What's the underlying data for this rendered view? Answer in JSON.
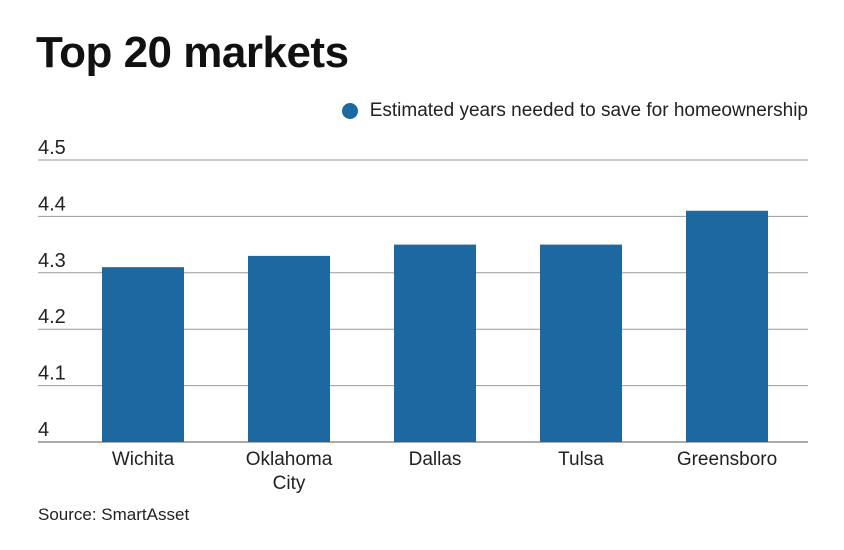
{
  "chart_data": {
    "type": "bar",
    "title": "Top 20 markets",
    "legend": {
      "label": "Estimated years needed to save for homeownership",
      "position": "top-right"
    },
    "categories": [
      [
        "Wichita"
      ],
      [
        "Oklahoma",
        "City"
      ],
      [
        "Dallas"
      ],
      [
        "Tulsa"
      ],
      [
        "Greensboro"
      ]
    ],
    "series": [
      {
        "name": "Estimated years needed to save for homeownership",
        "values": [
          4.31,
          4.33,
          4.35,
          4.35,
          4.41
        ]
      }
    ],
    "yticks": [
      "4",
      "4.1",
      "4.2",
      "4.3",
      "4.4",
      "4.5"
    ],
    "ylim": [
      4,
      4.5
    ],
    "grid": true,
    "source": "Source: SmartAsset",
    "colors": {
      "bar": "#1d68a0",
      "grid": "#9a9a9a",
      "axis": "#555555"
    }
  }
}
